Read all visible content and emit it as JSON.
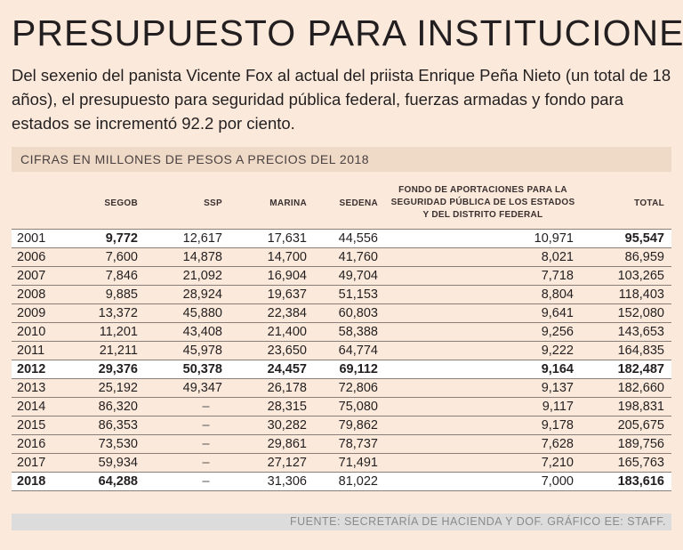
{
  "title": "PRESUPUESTO PARA INSTITUCIONES",
  "subtitle": "Del sexenio del panista Vicente Fox al actual del priista Enrique Peña Nieto (un total de 18 años), el presupuesto para seguridad pública federal, fuerzas armadas y fondo para estados se incrementó 92.2 por ciento.",
  "units": "CIFRAS EN MILLONES DE PESOS A PRECIOS DEL 2018",
  "headers": {
    "segob": "SEGOB",
    "ssp": "SSP",
    "marina": "MARINA",
    "sedena": "SEDENA",
    "fondo_1": "FONDO DE APORTACIONES PARA LA",
    "fondo_2": "SEGURIDAD PÚBLICA DE LOS ESTADOS",
    "fondo_3": "Y DEL DISTRITO FEDERAL",
    "total": "TOTAL"
  },
  "rows": [
    {
      "year": "2001",
      "segob": "9,772",
      "ssp": "12,617",
      "marina": "17,631",
      "sedena": "44,556",
      "fondo": "10,971",
      "total": "95,547"
    },
    {
      "year": "2006",
      "segob": "7,600",
      "ssp": "14,878",
      "marina": "14,700",
      "sedena": "41,760",
      "fondo": "8,021",
      "total": "86,959"
    },
    {
      "year": "2007",
      "segob": "7,846",
      "ssp": "21,092",
      "marina": "16,904",
      "sedena": "49,704",
      "fondo": "7,718",
      "total": "103,265"
    },
    {
      "year": "2008",
      "segob": "9,885",
      "ssp": "28,924",
      "marina": "19,637",
      "sedena": "51,153",
      "fondo": "8,804",
      "total": "118,403"
    },
    {
      "year": "2009",
      "segob": "13,372",
      "ssp": "45,880",
      "marina": "22,384",
      "sedena": "60,803",
      "fondo": "9,641",
      "total": "152,080"
    },
    {
      "year": "2010",
      "segob": "11,201",
      "ssp": "43,408",
      "marina": "21,400",
      "sedena": "58,388",
      "fondo": "9,256",
      "total": "143,653"
    },
    {
      "year": "2011",
      "segob": "21,211",
      "ssp": "45,978",
      "marina": "23,650",
      "sedena": "64,774",
      "fondo": "9,222",
      "total": "164,835"
    },
    {
      "year": "2012",
      "segob": "29,376",
      "ssp": "50,378",
      "marina": "24,457",
      "sedena": "69,112",
      "fondo": "9,164",
      "total": "182,487"
    },
    {
      "year": "2013",
      "segob": "25,192",
      "ssp": "49,347",
      "marina": "26,178",
      "sedena": "72,806",
      "fondo": "9,137",
      "total": "182,660"
    },
    {
      "year": "2014",
      "segob": "86,320",
      "ssp": "–",
      "marina": "28,315",
      "sedena": "75,080",
      "fondo": "9,117",
      "total": "198,831"
    },
    {
      "year": "2015",
      "segob": "86,353",
      "ssp": "–",
      "marina": "30,282",
      "sedena": "79,862",
      "fondo": "9,178",
      "total": "205,675"
    },
    {
      "year": "2016",
      "segob": "73,530",
      "ssp": "–",
      "marina": "29,861",
      "sedena": "78,737",
      "fondo": "7,628",
      "total": "189,756"
    },
    {
      "year": "2017",
      "segob": "59,934",
      "ssp": "–",
      "marina": "27,127",
      "sedena": "71,491",
      "fondo": "7,210",
      "total": "165,763"
    },
    {
      "year": "2018",
      "segob": "64,288",
      "ssp": "–",
      "marina": "31,306",
      "sedena": "81,022",
      "fondo": "7,000",
      "total": "183,616"
    }
  ],
  "source": "FUENTE: SECRETARÍA DE HACIENDA Y DOF. GRÁFICO EE: STAFF."
}
